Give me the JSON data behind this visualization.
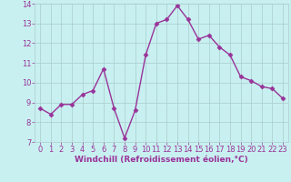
{
  "x": [
    0,
    1,
    2,
    3,
    4,
    5,
    6,
    7,
    8,
    9,
    10,
    11,
    12,
    13,
    14,
    15,
    16,
    17,
    18,
    19,
    20,
    21,
    22,
    23
  ],
  "y": [
    8.7,
    8.4,
    8.9,
    8.9,
    9.4,
    9.6,
    10.7,
    8.7,
    7.2,
    8.6,
    11.4,
    13.0,
    13.2,
    13.9,
    13.2,
    12.2,
    12.4,
    11.8,
    11.4,
    10.3,
    10.1,
    9.8,
    9.7,
    9.2
  ],
  "line_color": "#993399",
  "marker": "D",
  "marker_size": 2.5,
  "bg_color": "#c8f0f0",
  "grid_color": "#aacccc",
  "xlabel": "Windchill (Refroidissement éolien,°C)",
  "xlabel_color": "#993399",
  "tick_color": "#993399",
  "ylim": [
    7,
    14
  ],
  "xlim": [
    -0.5,
    23.5
  ],
  "yticks": [
    7,
    8,
    9,
    10,
    11,
    12,
    13,
    14
  ],
  "xticks": [
    0,
    1,
    2,
    3,
    4,
    5,
    6,
    7,
    8,
    9,
    10,
    11,
    12,
    13,
    14,
    15,
    16,
    17,
    18,
    19,
    20,
    21,
    22,
    23
  ],
  "linewidth": 1.0,
  "tick_fontsize": 6,
  "xlabel_fontsize": 6.5
}
